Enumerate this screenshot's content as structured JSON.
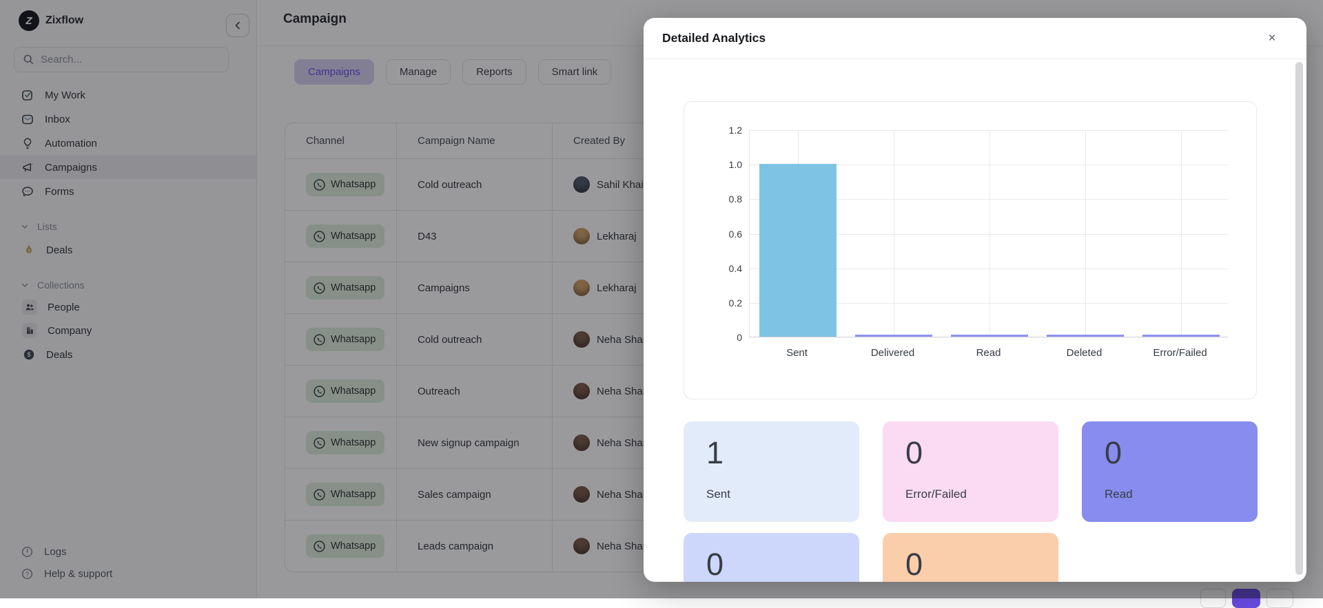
{
  "brand": {
    "name": "Zixflow",
    "logo_letter": "Z"
  },
  "sidebar": {
    "search": {
      "placeholder": "Search..."
    },
    "menu": [
      {
        "label": "My Work"
      },
      {
        "label": "Inbox"
      },
      {
        "label": "Automation"
      },
      {
        "label": "Campaigns",
        "active": true
      },
      {
        "label": "Forms"
      }
    ],
    "sections": [
      {
        "label": "Lists",
        "items": [
          {
            "label": "Deals"
          }
        ]
      },
      {
        "label": "Collections",
        "items": [
          {
            "label": "People"
          },
          {
            "label": "Company"
          },
          {
            "label": "Deals"
          }
        ]
      }
    ],
    "footer": [
      {
        "label": "Logs"
      },
      {
        "label": "Help & support"
      }
    ]
  },
  "header": {
    "title": "Campaign",
    "tabs": [
      {
        "label": "Campaigns",
        "active": true
      },
      {
        "label": "Manage"
      },
      {
        "label": "Reports"
      },
      {
        "label": "Smart link"
      }
    ]
  },
  "table": {
    "columns": [
      "Channel",
      "Campaign Name",
      "Created By"
    ],
    "rows": [
      {
        "channel": "Whatsapp",
        "name": "Cold outreach",
        "creator": "Sahil Khair",
        "avatar_color": "#4f5a6b"
      },
      {
        "channel": "Whatsapp",
        "name": "D43",
        "creator": "Lekharaj",
        "avatar_color": "#d2a368"
      },
      {
        "channel": "Whatsapp",
        "name": "Campaigns",
        "creator": "Lekharaj",
        "avatar_color": "#d2a368"
      },
      {
        "channel": "Whatsapp",
        "name": "Cold outreach",
        "creator": "Neha Shar",
        "avatar_color": "#7a5a4a"
      },
      {
        "channel": "Whatsapp",
        "name": "Outreach",
        "creator": "Neha Shar",
        "avatar_color": "#7a5a4a"
      },
      {
        "channel": "Whatsapp",
        "name": "New signup campaign",
        "creator": "Neha Shar",
        "avatar_color": "#7a5a4a"
      },
      {
        "channel": "Whatsapp",
        "name": "Sales campaign",
        "creator": "Neha Shar",
        "avatar_color": "#7a5a4a"
      },
      {
        "channel": "Whatsapp",
        "name": "Leads campaign",
        "creator": "Neha Shar",
        "avatar_color": "#7a5a4a"
      }
    ]
  },
  "modal": {
    "title": "Detailed Analytics",
    "close_label": "×",
    "chart_data": {
      "type": "bar",
      "categories": [
        "Sent",
        "Delivered",
        "Read",
        "Deleted",
        "Error/Failed"
      ],
      "values": [
        1,
        0,
        0,
        0,
        0
      ],
      "title": "",
      "xlabel": "",
      "ylabel": "",
      "ylim": [
        0,
        1.2
      ],
      "ytick_labels": [
        "0",
        "0.2",
        "0.4",
        "0.6",
        "0.8",
        "1.0",
        "1.2"
      ],
      "grid": true,
      "legend": "none",
      "bar_color": "#7EC3E3",
      "bar_border_color": "#5FABD4",
      "zero_bar_color": "#8F93EF"
    },
    "stats": [
      {
        "value": "1",
        "label": "Sent",
        "bg": "#E2EBFA"
      },
      {
        "value": "0",
        "label": "Error/Failed",
        "bg": "#FBDAF3"
      },
      {
        "value": "0",
        "label": "Read",
        "bg": "#878CEE"
      },
      {
        "value": "0",
        "label": "",
        "bg": "#CCD7FB"
      },
      {
        "value": "0",
        "label": "",
        "bg": "#FBCEAB"
      }
    ]
  },
  "colors": {
    "accent_purple": "#6b4ce6",
    "tab_active_bg": "#d6d0f3",
    "whatsapp_badge_bg": "#dceedd",
    "overlay": "rgba(14,14,19,0.42)"
  }
}
